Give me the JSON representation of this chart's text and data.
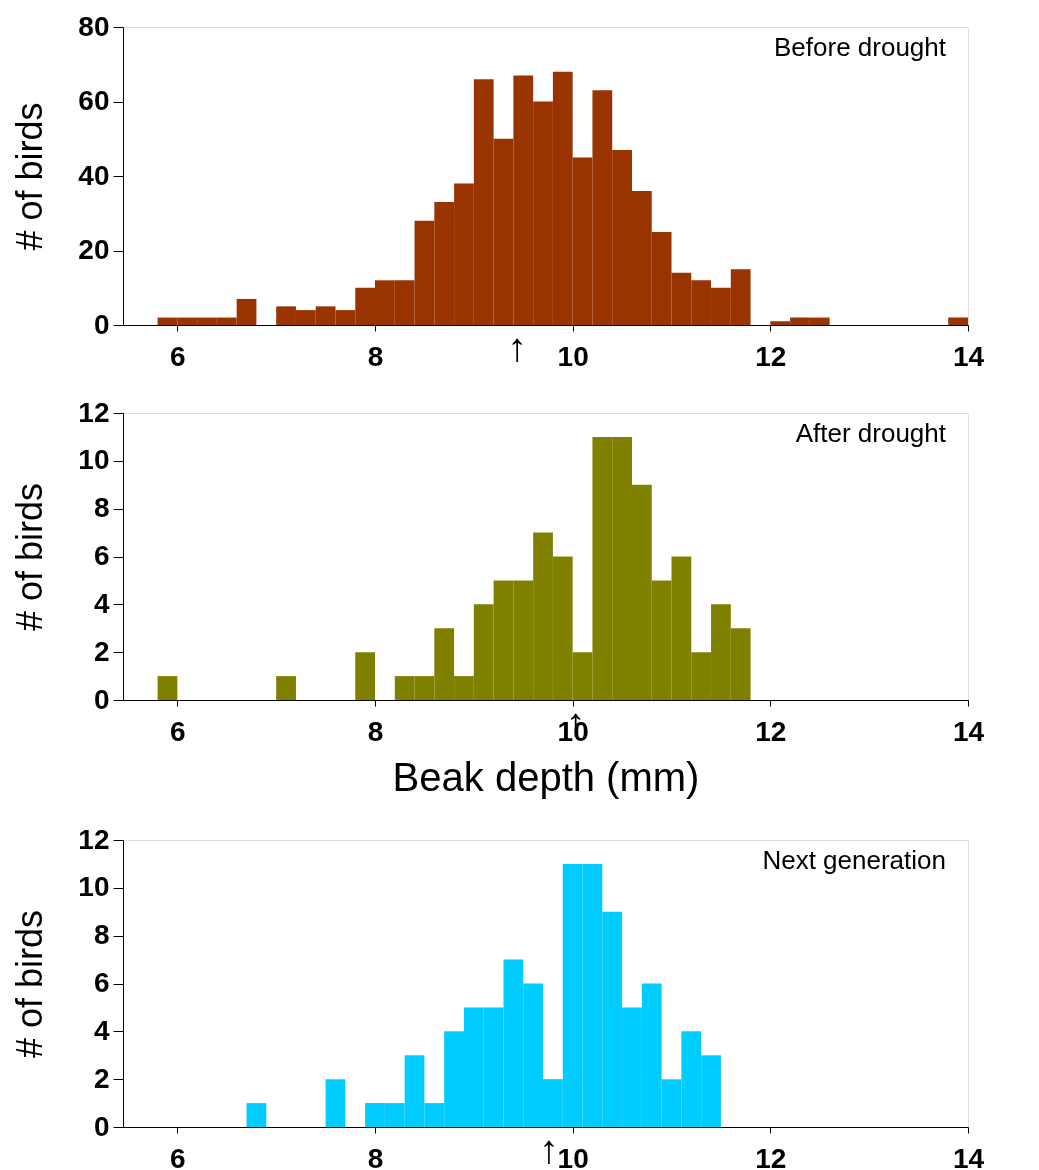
{
  "chart_data": [
    {
      "type": "histogram",
      "title": "Before drought",
      "ylabel": "# of birds",
      "bins": [
        5.8,
        6.0,
        6.2,
        6.4,
        6.6,
        6.8,
        7.0,
        7.2,
        7.4,
        7.6,
        7.8,
        8.0,
        8.2,
        8.4,
        8.6,
        8.8,
        9.0,
        9.2,
        9.4,
        9.6,
        9.8,
        10.0,
        10.2,
        10.4,
        10.6,
        10.8,
        11.0,
        11.2,
        11.4,
        11.6,
        11.8,
        12.0,
        12.2,
        12.4,
        12.6,
        12.8,
        13.0,
        13.2,
        13.4,
        13.6,
        13.8,
        14.0
      ],
      "values": [
        2,
        2,
        2,
        2,
        7,
        0,
        5,
        4,
        5,
        4,
        10,
        12,
        12,
        28,
        33,
        38,
        66,
        50,
        67,
        60,
        68,
        45,
        63,
        47,
        36,
        25,
        14,
        12,
        10,
        15,
        0,
        1,
        2,
        2,
        0,
        0,
        0,
        0,
        0,
        0,
        2
      ],
      "color": "#993300",
      "xlim": [
        5.45,
        14
      ],
      "xticks": [
        6,
        8,
        10,
        12,
        14
      ],
      "ylim": [
        0,
        80
      ],
      "yticks": [
        0,
        20,
        40,
        60,
        80
      ],
      "grid": false,
      "annotations": [
        {
          "text": "↑",
          "x": 9.44,
          "y": 0
        }
      ]
    },
    {
      "type": "histogram",
      "title": "After drought",
      "ylabel": "# of birds",
      "xlabel": "Beak depth (mm)",
      "bins": [
        5.8,
        6.0,
        6.2,
        6.4,
        6.6,
        6.8,
        7.0,
        7.2,
        7.4,
        7.6,
        7.8,
        8.0,
        8.2,
        8.4,
        8.6,
        8.8,
        9.0,
        9.2,
        9.4,
        9.6,
        9.8,
        10.0,
        10.2,
        10.4,
        10.6,
        10.8,
        11.0,
        11.2,
        11.4,
        11.6,
        11.8
      ],
      "values": [
        1,
        0,
        0,
        0,
        0,
        0,
        1,
        0,
        0,
        0,
        2,
        0,
        1,
        1,
        3,
        1,
        4,
        5,
        5,
        7,
        6,
        2,
        11,
        11,
        9,
        5,
        6,
        2,
        4,
        3
      ],
      "color": "#808000",
      "xlim": [
        5.45,
        14
      ],
      "xticks": [
        6,
        8,
        10,
        12,
        14
      ],
      "ylim": [
        0,
        12
      ],
      "yticks": [
        0,
        2,
        4,
        6,
        8,
        10,
        12
      ],
      "grid": false,
      "annotations": [
        {
          "text": "↑",
          "x": 10.03,
          "y": 0
        }
      ]
    },
    {
      "type": "histogram",
      "title": "Next generation",
      "ylabel": "# of birds",
      "bins": [
        6.7,
        6.9,
        7.1,
        7.3,
        7.5,
        7.7,
        7.9,
        8.1,
        8.3,
        8.5,
        8.7,
        8.9,
        9.1,
        9.3,
        9.5,
        9.7,
        9.9,
        10.1,
        10.3,
        10.5,
        10.7,
        10.9,
        11.1,
        11.3,
        11.5
      ],
      "values": [
        1,
        0,
        0,
        0,
        2,
        0,
        1,
        1,
        3,
        1,
        4,
        5,
        5,
        7,
        6,
        2,
        11,
        11,
        9,
        5,
        6,
        2,
        4,
        3
      ],
      "color": "#00ccff",
      "xlim": [
        5.45,
        14
      ],
      "xticks": [
        6,
        8,
        10,
        12,
        14
      ],
      "ylim": [
        0,
        12
      ],
      "yticks": [
        0,
        2,
        4,
        6,
        8,
        10,
        12
      ],
      "grid": false,
      "annotations": [
        {
          "text": "↑",
          "x": 9.76,
          "y": 0
        }
      ]
    }
  ]
}
